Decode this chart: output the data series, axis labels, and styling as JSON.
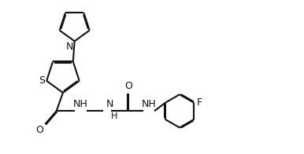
{
  "bg_color": "#ffffff",
  "line_color": "#111111",
  "line_width": 1.5,
  "font_size": 9,
  "xlim": [
    0,
    10
  ],
  "ylim": [
    0,
    5.2
  ],
  "figsize": [
    3.86,
    1.96
  ],
  "dpi": 100
}
